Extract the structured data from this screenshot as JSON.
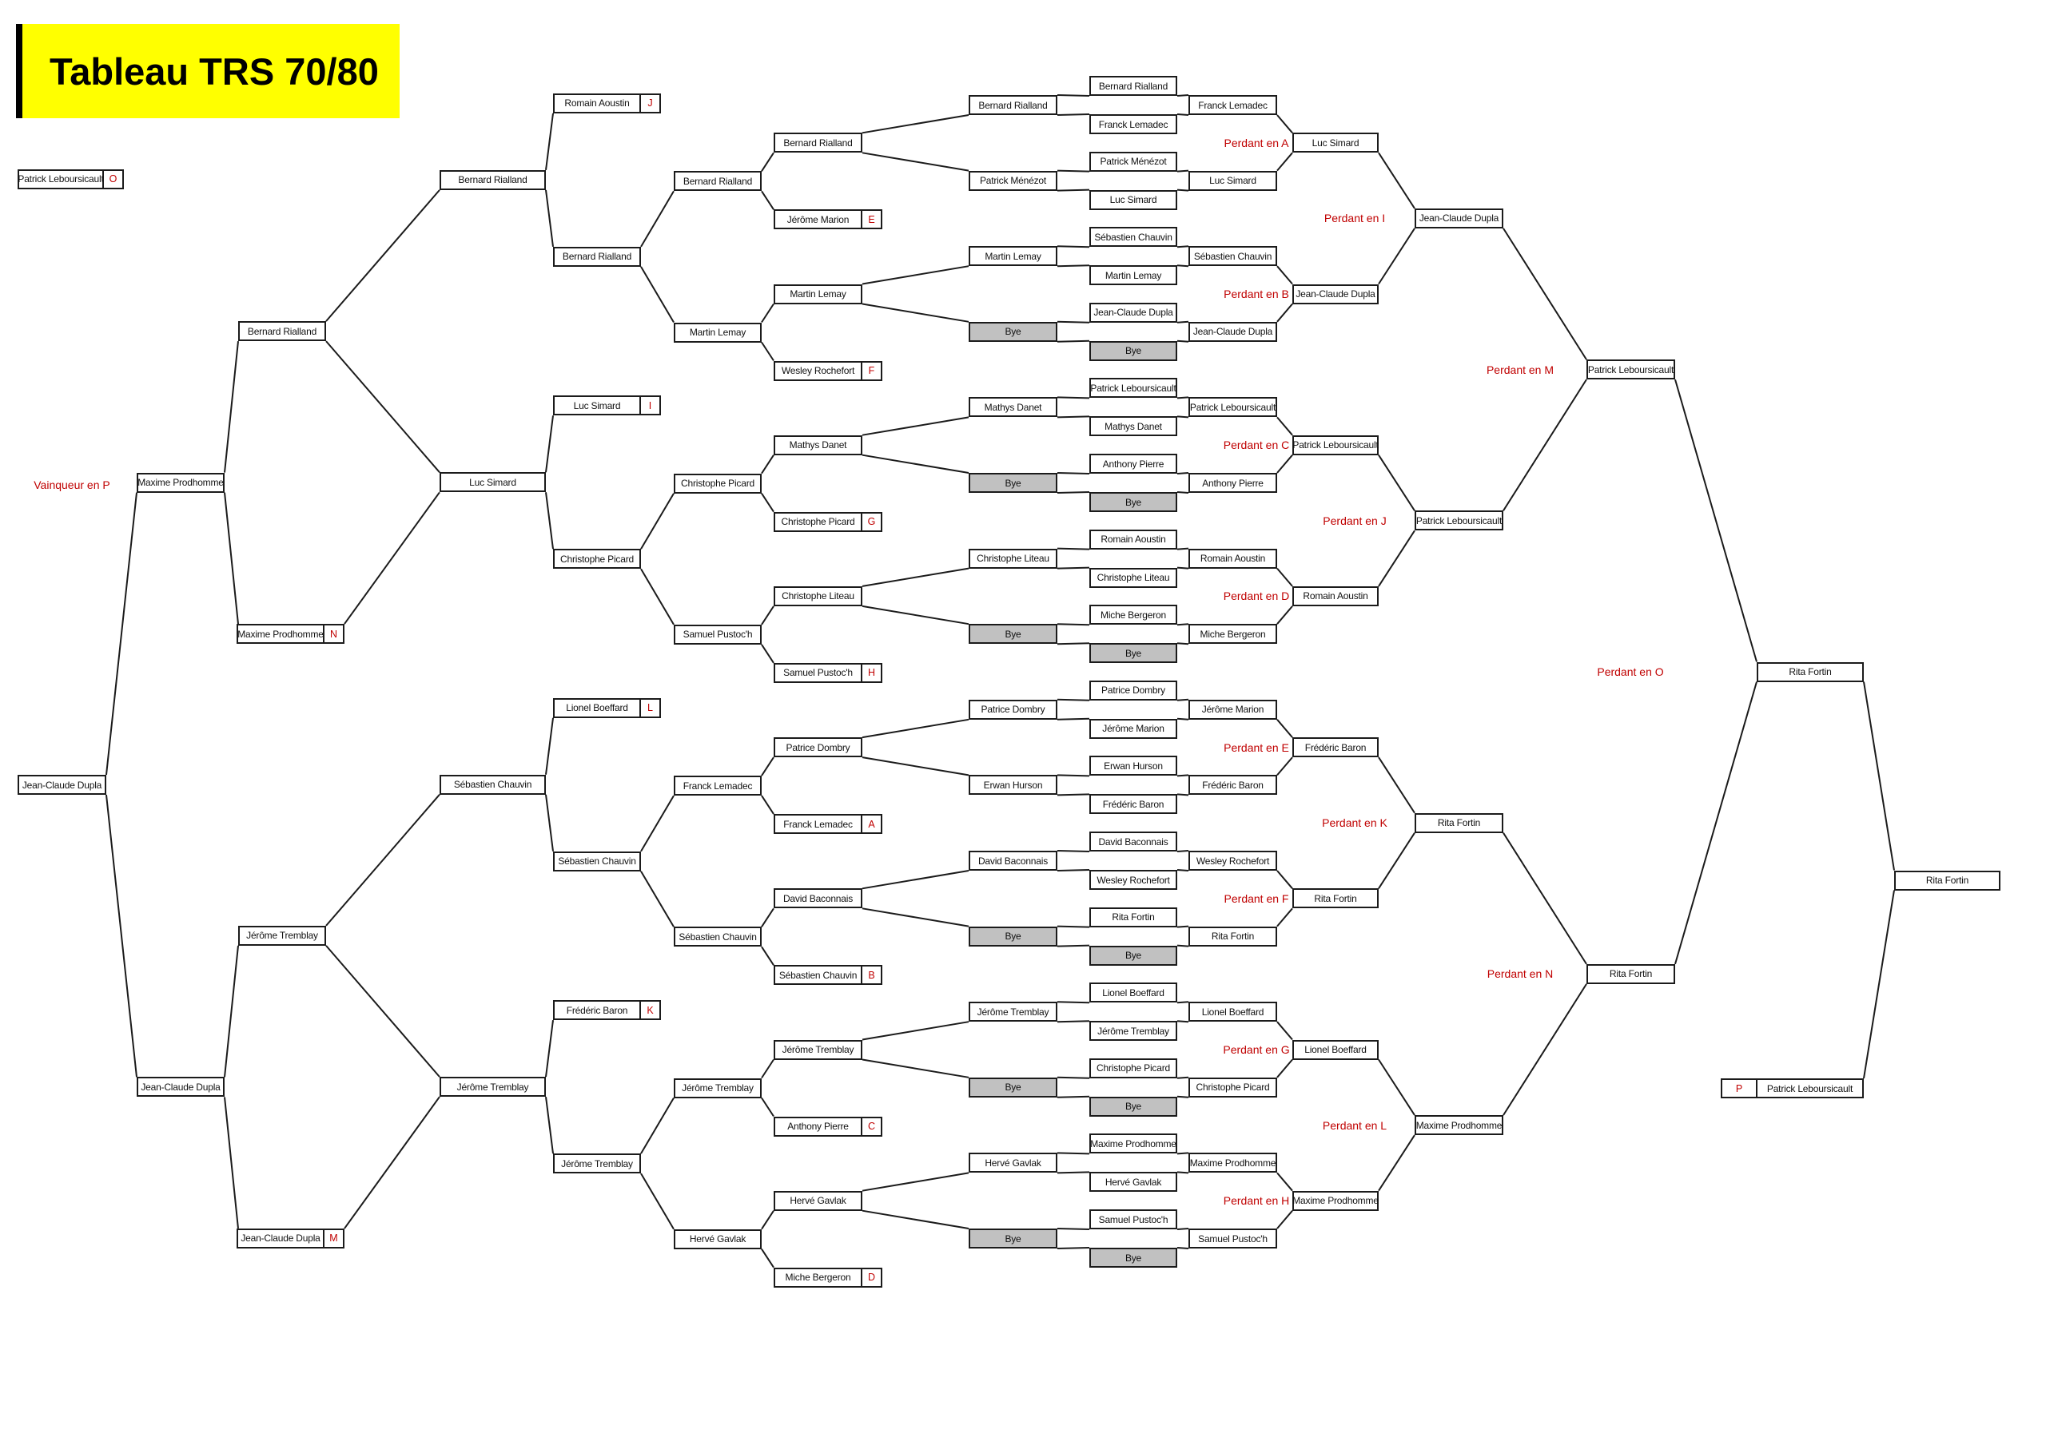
{
  "title": "Tableau TRS 70/80",
  "bye_label": "Bye",
  "vainqueur_label": "Vainqueur en P",
  "top_left_entrant": {
    "name": "Patrick Leboursicault",
    "letter": "O"
  },
  "main_bracket": {
    "pairs": [
      {
        "feeder": "Bernard Rialland",
        "feeder_bye": false,
        "a": "Bernard Rialland",
        "b": "Franck Lemadec",
        "b_bye": false,
        "r1": "Franck Lemadec"
      },
      {
        "feeder": "Patrick Ménézot",
        "feeder_bye": false,
        "a": "Patrick Ménézot",
        "b": "Luc Simard",
        "b_bye": false,
        "r1": "Luc Simard"
      },
      {
        "feeder": "Martin Lemay",
        "feeder_bye": false,
        "a": "Sébastien Chauvin",
        "b": "Martin Lemay",
        "b_bye": false,
        "r1": "Sébastien Chauvin"
      },
      {
        "feeder": "",
        "feeder_bye": true,
        "a": "Jean-Claude Dupla",
        "b": "",
        "b_bye": true,
        "r1": "Jean-Claude Dupla"
      },
      {
        "feeder": "Mathys Danet",
        "feeder_bye": false,
        "a": "Patrick Leboursicault",
        "b": "Mathys Danet",
        "b_bye": false,
        "r1": "Patrick Leboursicault"
      },
      {
        "feeder": "",
        "feeder_bye": true,
        "a": "Anthony Pierre",
        "b": "",
        "b_bye": true,
        "r1": "Anthony Pierre"
      },
      {
        "feeder": "Christophe Liteau",
        "feeder_bye": false,
        "a": "Romain Aoustin",
        "b": "Christophe Liteau",
        "b_bye": false,
        "r1": "Romain Aoustin"
      },
      {
        "feeder": "",
        "feeder_bye": true,
        "a": "Miche Bergeron",
        "b": "",
        "b_bye": true,
        "r1": "Miche Bergeron"
      },
      {
        "feeder": "Patrice Dombry",
        "feeder_bye": false,
        "a": "Patrice Dombry",
        "b": "Jérôme Marion",
        "b_bye": false,
        "r1": "Jérôme Marion"
      },
      {
        "feeder": "Erwan Hurson",
        "feeder_bye": false,
        "a": "Erwan Hurson",
        "b": "Frédéric Baron",
        "b_bye": false,
        "r1": "Frédéric Baron"
      },
      {
        "feeder": "David Baconnais",
        "feeder_bye": false,
        "a": "David Baconnais",
        "b": "Wesley Rochefort",
        "b_bye": false,
        "r1": "Wesley Rochefort"
      },
      {
        "feeder": "",
        "feeder_bye": true,
        "a": "Rita Fortin",
        "b": "",
        "b_bye": true,
        "r1": "Rita Fortin"
      },
      {
        "feeder": "Jérôme Tremblay",
        "feeder_bye": false,
        "a": "Lionel Boeffard",
        "b": "Jérôme Tremblay",
        "b_bye": false,
        "r1": "Lionel Boeffard"
      },
      {
        "feeder": "",
        "feeder_bye": true,
        "a": "Christophe Picard",
        "b": "",
        "b_bye": true,
        "r1": "Christophe Picard"
      },
      {
        "feeder": "Hervé Gavlak",
        "feeder_bye": false,
        "a": "Maxime Prodhomme",
        "b": "Hervé Gavlak",
        "b_bye": false,
        "r1": "Maxime Prodhomme"
      },
      {
        "feeder": "",
        "feeder_bye": true,
        "a": "Samuel Pustoc'h",
        "b": "",
        "b_bye": true,
        "r1": "Samuel Pustoc'h"
      }
    ],
    "r2": [
      "Luc Simard",
      "Jean-Claude Dupla",
      "Patrick Leboursicault",
      "Romain Aoustin",
      "Frédéric Baron",
      "Rita Fortin",
      "Lionel Boeffard",
      "Maxime Prodhomme"
    ],
    "r3": [
      "Jean-Claude Dupla",
      "Patrick Leboursicault",
      "Rita Fortin",
      "Maxime Prodhomme"
    ],
    "r4": [
      "Patrick Leboursicault",
      "Rita Fortin"
    ],
    "o_winner": "Rita Fortin",
    "champion": "Rita Fortin",
    "second_place": {
      "letter": "P",
      "name": "Patrick Leboursicault"
    },
    "loser_labels": {
      "r2": [
        "Perdant en A",
        "Perdant en B",
        "Perdant en C",
        "Perdant en D",
        "Perdant en E",
        "Perdant en F",
        "Perdant en G",
        "Perdant en H"
      ],
      "r3": [
        "Perdant en I",
        "Perdant en J",
        "Perdant en K",
        "Perdant en L"
      ],
      "r4": [
        "Perdant en M",
        "Perdant en N"
      ],
      "final": "Perdant en O"
    }
  },
  "consolation_bracket": {
    "r1_results": [
      "Bernard Rialland",
      "Martin Lemay",
      "Mathys Danet",
      "Christophe Liteau",
      "Patrice Dombry",
      "David Baconnais",
      "Jérôme Tremblay",
      "Hervé Gavlak"
    ],
    "r1_entrants": [
      {
        "name": "Jérôme Marion",
        "letter": "E"
      },
      {
        "name": "Wesley Rochefort",
        "letter": "F"
      },
      {
        "name": "Christophe Picard",
        "letter": "G"
      },
      {
        "name": "Samuel Pustoc'h",
        "letter": "H"
      },
      {
        "name": "Franck Lemadec",
        "letter": "A"
      },
      {
        "name": "Sébastien Chauvin",
        "letter": "B"
      },
      {
        "name": "Anthony Pierre",
        "letter": "C"
      },
      {
        "name": "Miche Bergeron",
        "letter": "D"
      }
    ],
    "r2_results": [
      "Bernard Rialland",
      "Martin Lemay",
      "Christophe Picard",
      "Samuel Pustoc'h",
      "Franck Lemadec",
      "Sébastien Chauvin",
      "Jérôme Tremblay",
      "Hervé Gavlak"
    ],
    "r3_results": [
      "Bernard Rialland",
      "Christophe Picard",
      "Sébastien Chauvin",
      "Jérôme Tremblay"
    ],
    "r3_entrants": [
      {
        "name": "Romain Aoustin",
        "letter": "J"
      },
      {
        "name": "Luc Simard",
        "letter": "I"
      },
      {
        "name": "Lionel Boeffard",
        "letter": "L"
      },
      {
        "name": "Frédéric Baron",
        "letter": "K"
      }
    ],
    "r4_results": [
      "Bernard Rialland",
      "Luc Simard",
      "Sébastien Chauvin",
      "Jérôme Tremblay"
    ],
    "r5_results": [
      "Bernard Rialland",
      "Jérôme Tremblay"
    ],
    "r5_entrants": [
      {
        "name": "Maxime Prodhomme",
        "letter": "N"
      },
      {
        "name": "Jean-Claude Dupla",
        "letter": "M"
      }
    ],
    "r6_results": [
      "Maxime Prodhomme",
      "Jean-Claude Dupla"
    ],
    "winner": "Jean-Claude Dupla"
  },
  "colors": {
    "red": "#c00000",
    "bye": "#c1c1c1",
    "yellow": "#ffff00",
    "line": "#1b1b1b"
  }
}
